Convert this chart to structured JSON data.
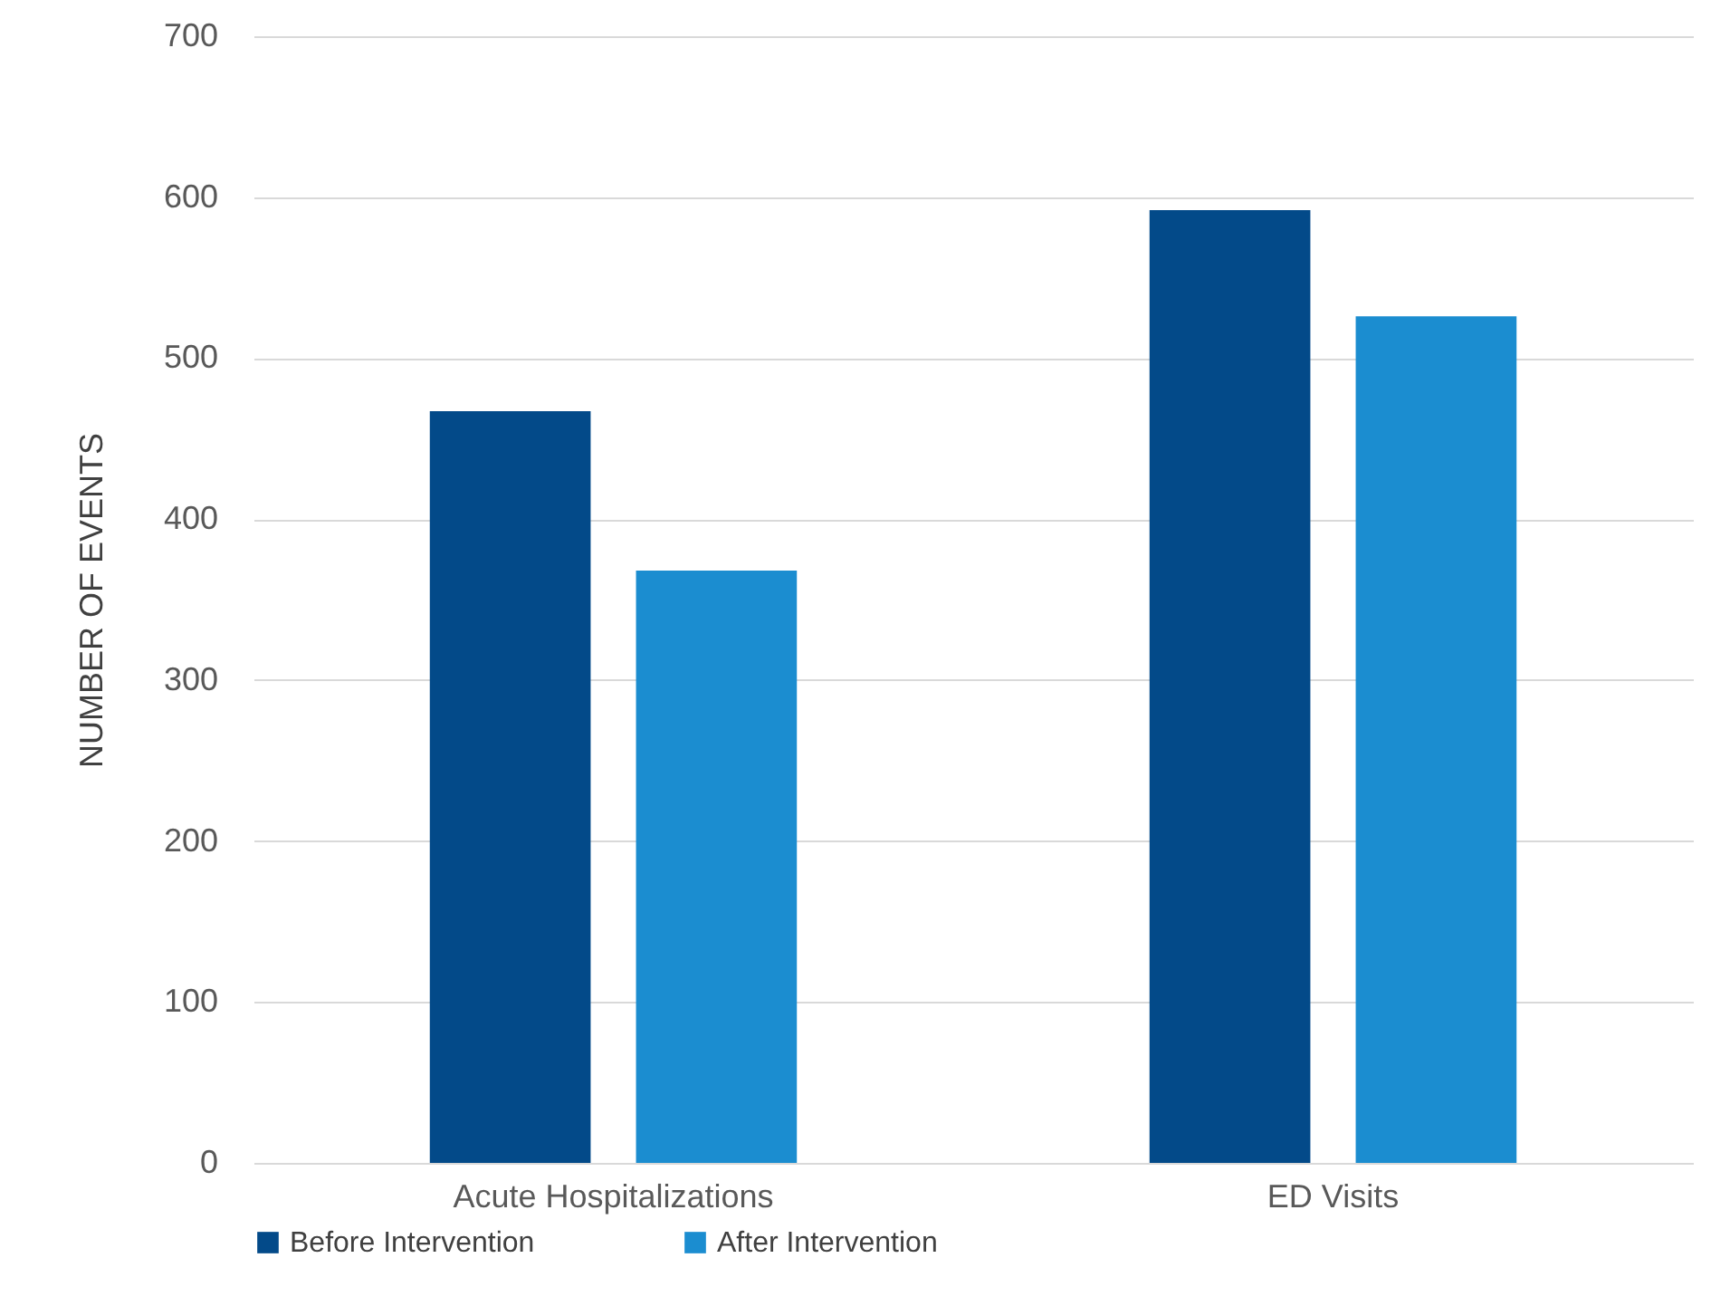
{
  "chart_data": {
    "type": "bar",
    "ylabel": "NUMBER OF EVENTS",
    "categories": [
      "Acute Hospitalizations",
      "ED Visits"
    ],
    "series": [
      {
        "name": "Before Intervention",
        "color": "#034a89",
        "values": [
          467,
          592
        ]
      },
      {
        "name": "After Intervention",
        "color": "#1b8dd0",
        "values": [
          368,
          526
        ]
      }
    ],
    "ylim": [
      0,
      700
    ],
    "yticks": [
      0,
      100,
      200,
      300,
      400,
      500,
      600,
      700
    ],
    "grid": "y",
    "legend": "bottom"
  }
}
